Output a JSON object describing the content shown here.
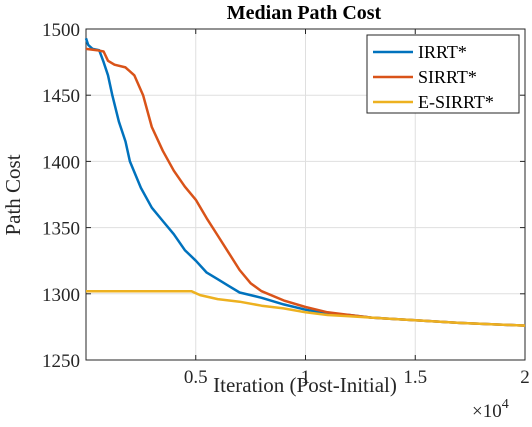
{
  "chart_data": {
    "type": "line",
    "title": "Median Path Cost",
    "xlabel": "Iteration (Post-Initial)",
    "ylabel": "Path Cost",
    "x_exponent_label": "×10",
    "x_exponent_power": "4",
    "xlim": [
      0,
      2
    ],
    "ylim": [
      1250,
      1500
    ],
    "x_ticks": [
      0.5,
      1,
      1.5,
      2
    ],
    "x_tick_labels": [
      "0.5",
      "1",
      "1.5",
      "2"
    ],
    "y_ticks": [
      1250,
      1300,
      1350,
      1400,
      1450,
      1500
    ],
    "y_tick_labels": [
      "1250",
      "1300",
      "1350",
      "1400",
      "1450",
      "1500"
    ],
    "grid": true,
    "legend_position": "top-right",
    "series": [
      {
        "name": "IRRT*",
        "color": "#0072BD",
        "x": [
          0,
          0.01,
          0.03,
          0.06,
          0.08,
          0.1,
          0.12,
          0.15,
          0.18,
          0.2,
          0.25,
          0.3,
          0.35,
          0.4,
          0.45,
          0.5,
          0.55,
          0.6,
          0.65,
          0.7,
          0.8,
          0.9,
          1.0,
          1.1,
          1.2,
          1.3,
          1.5,
          1.7,
          2.0
        ],
        "y": [
          1493,
          1488,
          1485,
          1484,
          1475,
          1465,
          1450,
          1430,
          1415,
          1400,
          1380,
          1365,
          1355,
          1345,
          1333,
          1325,
          1316,
          1311,
          1306,
          1301,
          1297,
          1292,
          1288,
          1285,
          1284,
          1282,
          1280,
          1278,
          1276
        ]
      },
      {
        "name": "SIRRT*",
        "color": "#D95319",
        "x": [
          0,
          0.05,
          0.08,
          0.1,
          0.13,
          0.18,
          0.22,
          0.26,
          0.3,
          0.35,
          0.4,
          0.45,
          0.5,
          0.55,
          0.6,
          0.65,
          0.7,
          0.75,
          0.8,
          0.9,
          1.0,
          1.1,
          1.2,
          1.3,
          1.5,
          1.7,
          2.0
        ],
        "y": [
          1485,
          1484,
          1483,
          1476,
          1473,
          1471,
          1465,
          1450,
          1426,
          1408,
          1393,
          1381,
          1371,
          1357,
          1344,
          1331,
          1318,
          1308,
          1302,
          1295,
          1290,
          1286,
          1284,
          1282,
          1280,
          1278,
          1276
        ]
      },
      {
        "name": "E-SIRRT*",
        "color": "#EDB120",
        "x": [
          0,
          0.48,
          0.52,
          0.6,
          0.7,
          0.8,
          0.9,
          1.0,
          1.1,
          1.2,
          1.3,
          1.5,
          1.7,
          2.0
        ],
        "y": [
          1302,
          1302,
          1299,
          1296,
          1294,
          1291,
          1289,
          1286,
          1284,
          1283,
          1282,
          1280,
          1278,
          1276
        ]
      }
    ]
  }
}
